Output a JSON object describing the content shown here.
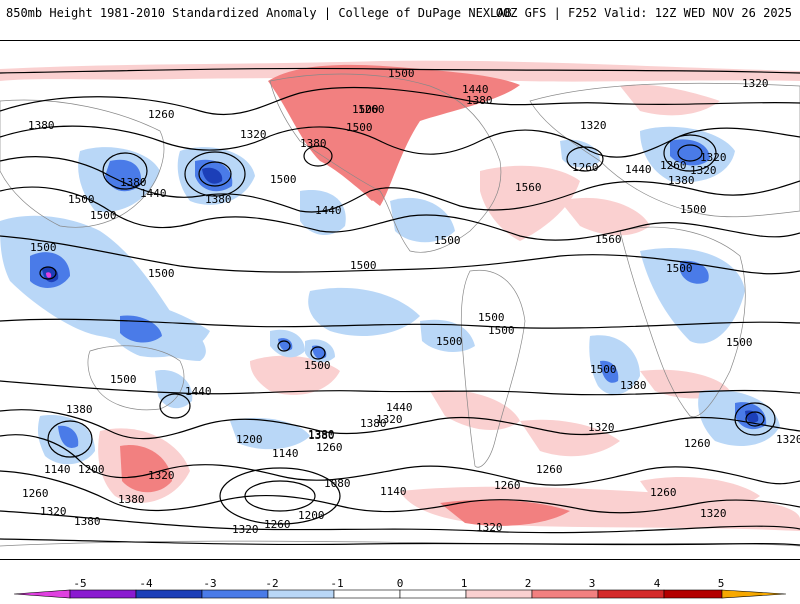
{
  "header": {
    "left_title": "850mb Height 1981-2010 Standardized Anomaly | College of DuPage NEXLAB",
    "right_title": "00Z GFS | F252 Valid: 12Z WED NOV 26 2025"
  },
  "colors": {
    "neg5": "#e040e0",
    "neg4": "#8a1ad0",
    "neg3": "#1c3fb8",
    "neg2": "#4a7be8",
    "neg1": "#b9d7f7",
    "zero": "#ffffff",
    "pos1": "#fad0d0",
    "pos2": "#f28080",
    "pos3": "#d42a2a",
    "pos4": "#b30000",
    "pos5": "#f6a800",
    "contour": "#000000",
    "land": "#888888"
  },
  "colorbar": {
    "ticks": [
      "-5",
      "-4",
      "-3",
      "-2",
      "-1",
      "0",
      "1",
      "2",
      "3",
      "4",
      "5"
    ]
  },
  "contour_labels": [
    {
      "text": "1500"
    },
    {
      "text": "1440"
    },
    {
      "text": "1380"
    },
    {
      "text": "1320"
    },
    {
      "text": "1500"
    },
    {
      "text": "1260"
    },
    {
      "text": "1380"
    },
    {
      "text": "1320"
    },
    {
      "text": "1380"
    },
    {
      "text": "1500"
    },
    {
      "text": "1380"
    },
    {
      "text": "1260"
    },
    {
      "text": "1320"
    },
    {
      "text": "1440"
    },
    {
      "text": "1500"
    },
    {
      "text": "1500"
    },
    {
      "text": "1500"
    },
    {
      "text": "1380"
    },
    {
      "text": "1440"
    },
    {
      "text": "1560"
    },
    {
      "text": "1320"
    },
    {
      "text": "1260"
    },
    {
      "text": "1440"
    },
    {
      "text": "1380"
    },
    {
      "text": "1320"
    },
    {
      "text": "1260"
    },
    {
      "text": "1500"
    },
    {
      "text": "1560"
    },
    {
      "text": "1500"
    },
    {
      "text": "1500"
    },
    {
      "text": "1500"
    },
    {
      "text": "1500"
    },
    {
      "text": "1500"
    },
    {
      "text": "1500"
    },
    {
      "text": "1500"
    },
    {
      "text": "1500"
    },
    {
      "text": "1440"
    },
    {
      "text": "1380"
    },
    {
      "text": "1320"
    },
    {
      "text": "1500"
    },
    {
      "text": "1440"
    },
    {
      "text": "1380"
    },
    {
      "text": "1320"
    },
    {
      "text": "1260"
    },
    {
      "text": "1200"
    },
    {
      "text": "1380"
    },
    {
      "text": "1260"
    },
    {
      "text": "1140"
    },
    {
      "text": "1320"
    },
    {
      "text": "1380"
    },
    {
      "text": "1380"
    },
    {
      "text": "1140"
    },
    {
      "text": "1200"
    },
    {
      "text": "1320"
    },
    {
      "text": "1260"
    },
    {
      "text": "1320"
    },
    {
      "text": "1380"
    },
    {
      "text": "1380"
    },
    {
      "text": "1080"
    },
    {
      "text": "1140"
    },
    {
      "text": "1260"
    },
    {
      "text": "1200"
    },
    {
      "text": "1320"
    },
    {
      "text": "1320"
    },
    {
      "text": "1260"
    },
    {
      "text": "1260"
    },
    {
      "text": "1260"
    },
    {
      "text": "1320"
    },
    {
      "text": "1500"
    },
    {
      "text": "1500"
    },
    {
      "text": "1500"
    }
  ]
}
